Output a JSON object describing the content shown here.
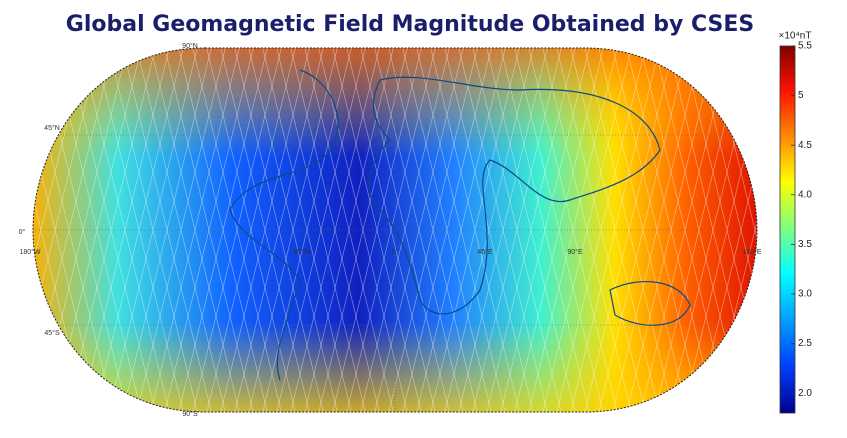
{
  "title": "Global Geomagnetic Field Magnitude Obtained by CSES",
  "colorbar": {
    "unit": "×10⁴nT",
    "lim": [
      1.8,
      5.5
    ],
    "ticks": [
      5.5,
      5,
      4.5,
      {
        "value": 4,
        "label": "4.0"
      },
      3.5,
      {
        "value": 3,
        "label": "3.0"
      },
      2.5,
      {
        "value": 2,
        "label": "2.0"
      }
    ]
  },
  "latitude_labels": [
    "90°N",
    "45°N",
    "0°",
    "45°S",
    "90°S"
  ],
  "longitude_labels": [
    "180°W",
    "45°W",
    "0°",
    "45°E",
    "90°E",
    "180°E"
  ]
}
